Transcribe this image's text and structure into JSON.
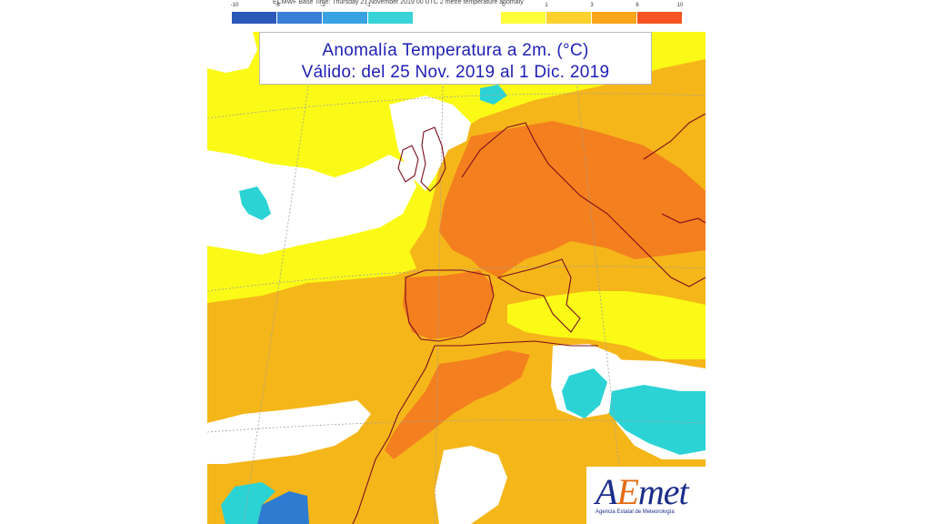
{
  "legend": {
    "header_text": "ECMWF Base Time: Thursday 21 November 2019 00 UTC 2 metre temperature anomaly",
    "cold": {
      "ticks": [
        "-10",
        "-6",
        "-3",
        "-1",
        ""
      ],
      "colors": [
        "#2c58b8",
        "#3a7fd6",
        "#38a2e3",
        "#37d3d6"
      ]
    },
    "warm": {
      "ticks": [
        "0",
        "1",
        "3",
        "6",
        "10"
      ],
      "colors": [
        "#ffff3a",
        "#fcd12e",
        "#fba51a",
        "#f8781e",
        "#f55321"
      ]
    }
  },
  "map": {
    "title_line1": "Anomalía Temperatura a 2m. (°C)",
    "title_line2": "Válido: del 25 Nov. 2019 al 1 Dic. 2019",
    "colors": {
      "neutral": "#ffffff",
      "weak_warm": "#fafa16",
      "warm": "#f5b619",
      "strong_warm": "#f47f1e",
      "cyan": "#2bd3d5",
      "blue": "#2e7cd2",
      "coast": "#7b0e1e",
      "grid": "#a0a0a0"
    }
  },
  "logo": {
    "text_a": "A",
    "text_e": "E",
    "text_rest": "met",
    "subtitle": "Agencia Estatal de Meteorología"
  }
}
